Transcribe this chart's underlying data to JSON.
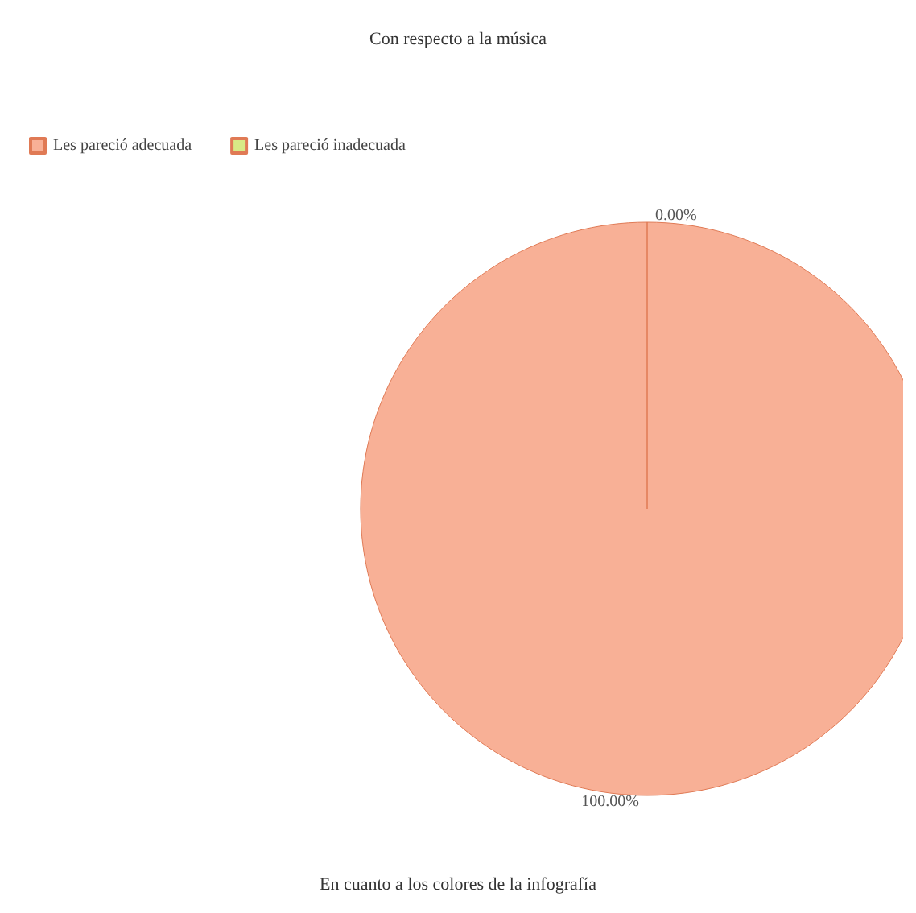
{
  "chart_data": {
    "type": "pie",
    "title": "Con respecto a la música",
    "annotations": [
      "En cuanto a los colores de la infografía"
    ],
    "categories": [
      "Les pareció adecuada",
      "Les pareció inadecuada"
    ],
    "values": [
      100,
      0
    ],
    "colors": [
      "#f8b096",
      "#d8ea86"
    ],
    "value_labels": [
      "100.00%",
      "0.00%"
    ],
    "legend": "top left"
  }
}
